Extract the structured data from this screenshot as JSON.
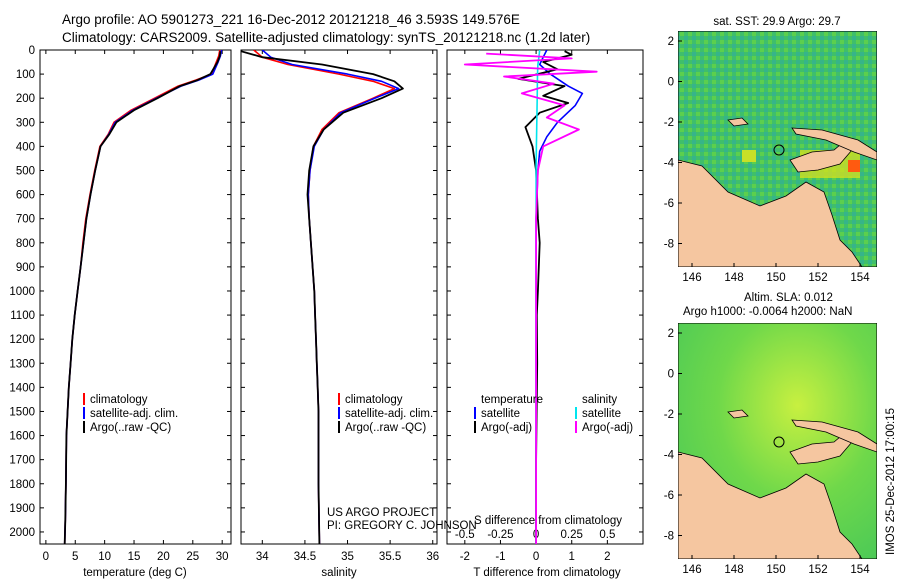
{
  "header": {
    "line1": "Argo profile: AO 5901273_221 16-Dec-2012 20121218_46 3.593S 149.576E",
    "line2": "Climatology: CARS2009. Satellite-adjusted climatology: synTS_20121218.nc (1.2d later)"
  },
  "colors": {
    "climatology": "#ff0000",
    "satellite": "#0000ff",
    "argo": "#000000",
    "salinity_satellite": "#00e5ee",
    "salinity_argo": "#ff00ff",
    "land": "#f5c6a0",
    "map_ocean": "#4fd04f"
  },
  "legend_profiles": [
    "climatology",
    "satellite-adj. clim.",
    "Argo(..raw -QC)"
  ],
  "legend_diff": {
    "heading_t": "temperature",
    "heading_s": "salinity",
    "items_t": [
      "satellite",
      "Argo(-adj)"
    ],
    "items_s": [
      "satellite",
      "Argo(-adj)"
    ]
  },
  "annotation": {
    "line1": "US ARGO PROJECT",
    "line2": "PI: GREGORY C. JOHNSON"
  },
  "sst_map": {
    "title": "sat. SST: 29.9  Argo: 29.7",
    "xticks": [
      "146",
      "148",
      "150",
      "152",
      "154"
    ],
    "yticks": [
      "2",
      "0",
      "-2",
      "-4",
      "-6",
      "-8"
    ]
  },
  "sla_map": {
    "title1": "Altim. SLA: 0.012",
    "title2": "Argo h1000: -0.0064  h2000: NaN",
    "xticks": [
      "146",
      "148",
      "150",
      "152",
      "154"
    ],
    "yticks": [
      "2",
      "0",
      "-2",
      "-4",
      "-6",
      "-8"
    ]
  },
  "footer_stamp": "IMOS 25-Dec-2012 17:00:15",
  "chart_data": [
    {
      "type": "line",
      "xlabel": "temperature (deg C)",
      "ylim": [
        2050,
        0
      ],
      "xlim": [
        -1,
        31.5
      ],
      "xticks": [
        0,
        5,
        10,
        15,
        20,
        25,
        30
      ],
      "yticks": [
        0,
        100,
        200,
        300,
        400,
        500,
        600,
        700,
        800,
        900,
        1000,
        1100,
        1200,
        1300,
        1400,
        1500,
        1600,
        1700,
        1800,
        1900,
        2000
      ],
      "series": [
        {
          "name": "climatology",
          "x": [
            29.6,
            29.4,
            29.0,
            28.2,
            25.5,
            22.5,
            18.5,
            14.5,
            11.6,
            10.6,
            9.2,
            8.3,
            7.5,
            6.8,
            6.3,
            5.9,
            5.4,
            4.9,
            4.5,
            4.2,
            3.9,
            3.7,
            3.5,
            3.4,
            3.3,
            3.2
          ],
          "y": [
            0,
            25,
            50,
            100,
            125,
            150,
            200,
            250,
            300,
            350,
            400,
            500,
            600,
            700,
            800,
            900,
            1000,
            1100,
            1200,
            1300,
            1400,
            1500,
            1600,
            1800,
            1950,
            2050
          ]
        },
        {
          "name": "satellite-adj. clim.",
          "x": [
            29.9,
            29.7,
            29.3,
            28.4,
            26.0,
            23.0,
            18.8,
            14.8,
            11.8,
            10.7,
            9.3,
            8.4,
            7.6,
            6.9,
            6.4,
            5.9,
            5.4,
            4.9,
            4.5,
            4.2,
            3.9,
            3.7,
            3.5,
            3.4,
            3.3,
            3.2
          ],
          "y": [
            0,
            25,
            50,
            100,
            125,
            150,
            200,
            250,
            300,
            350,
            400,
            500,
            600,
            700,
            800,
            900,
            1000,
            1100,
            1200,
            1300,
            1400,
            1500,
            1600,
            1800,
            1950,
            2050
          ]
        },
        {
          "name": "Argo(..raw -QC)",
          "x": [
            29.7,
            29.6,
            29.2,
            28.0,
            25.8,
            22.8,
            19.0,
            15.0,
            12.0,
            10.8,
            9.3,
            8.4,
            7.6,
            6.9,
            6.4,
            5.9,
            5.4,
            4.9,
            4.5,
            4.2,
            3.9,
            3.7,
            3.5,
            3.4,
            3.3,
            3.2
          ],
          "y": [
            5,
            25,
            50,
            100,
            125,
            150,
            200,
            250,
            300,
            350,
            400,
            500,
            600,
            700,
            800,
            900,
            1000,
            1100,
            1200,
            1300,
            1400,
            1500,
            1600,
            1800,
            1950,
            2050
          ]
        }
      ]
    },
    {
      "type": "line",
      "xlabel": "salinity",
      "ylim": [
        2050,
        0
      ],
      "xlim": [
        33.75,
        36.05
      ],
      "xticks": [
        34,
        34.5,
        35,
        35.5,
        36
      ],
      "series": [
        {
          "name": "climatology",
          "x": [
            33.9,
            34.0,
            34.3,
            34.9,
            35.3,
            35.55,
            35.3,
            34.9,
            34.7,
            34.6,
            34.56,
            34.54,
            34.55,
            34.57,
            34.59,
            34.61,
            34.62,
            34.63,
            34.64,
            34.65,
            34.66,
            34.66,
            34.67
          ],
          "y": [
            0,
            30,
            60,
            100,
            130,
            160,
            200,
            260,
            330,
            400,
            500,
            600,
            700,
            800,
            900,
            1000,
            1100,
            1200,
            1300,
            1400,
            1500,
            1800,
            2050
          ]
        },
        {
          "name": "satellite-adj. clim.",
          "x": [
            34.0,
            34.1,
            34.35,
            35.0,
            35.4,
            35.6,
            35.32,
            34.92,
            34.72,
            34.61,
            34.56,
            34.54,
            34.55,
            34.57,
            34.59,
            34.61,
            34.62,
            34.63,
            34.64,
            34.65,
            34.66,
            34.66,
            34.67
          ],
          "y": [
            0,
            30,
            60,
            100,
            130,
            160,
            200,
            260,
            330,
            400,
            500,
            600,
            700,
            800,
            900,
            1000,
            1100,
            1200,
            1300,
            1400,
            1500,
            1800,
            2050
          ]
        },
        {
          "name": "Argo(..raw -QC)",
          "x": [
            33.75,
            34.0,
            34.7,
            35.3,
            35.55,
            35.65,
            35.4,
            34.95,
            34.72,
            34.6,
            34.55,
            34.53,
            34.55,
            34.57,
            34.59,
            34.61,
            34.62,
            34.63,
            34.64,
            34.65,
            34.66,
            34.66,
            34.67
          ],
          "y": [
            5,
            30,
            60,
            100,
            130,
            160,
            200,
            260,
            330,
            400,
            500,
            600,
            700,
            800,
            900,
            1000,
            1100,
            1200,
            1300,
            1400,
            1500,
            1800,
            2050
          ]
        }
      ]
    },
    {
      "type": "line",
      "xlabel": "T difference from climatology",
      "xlabel_top": "S difference from climatology",
      "ylim": [
        2050,
        0
      ],
      "xlim": [
        -2.5,
        3.0
      ],
      "xticks": [
        -2,
        -1,
        0,
        1,
        2
      ],
      "xticks_top": [
        "-0.5",
        "-0.25",
        "0",
        "0.25",
        "0.5"
      ],
      "series": [
        {
          "name": "temperature satellite",
          "x": [
            0.3,
            0.2,
            0.1,
            0.4,
            0.9,
            1.3,
            1.1,
            0.6,
            0.3,
            0.1,
            0.05,
            0.0,
            0.0,
            0.0,
            0.0,
            0.0,
            0.0
          ],
          "y": [
            0,
            30,
            60,
            100,
            150,
            180,
            230,
            300,
            360,
            420,
            500,
            700,
            900,
            1200,
            1500,
            1800,
            2050
          ]
        },
        {
          "name": "temperature Argo(-adj)",
          "x": [
            0.8,
            1.0,
            0.2,
            0.6,
            -0.5,
            0.8,
            0.2,
            0.9,
            0.1,
            -0.3,
            -0.1,
            0.0,
            0.05,
            0.1,
            0.05,
            0.02,
            0.03,
            0.0,
            0.0
          ],
          "y": [
            5,
            20,
            50,
            80,
            120,
            150,
            190,
            220,
            260,
            320,
            400,
            500,
            700,
            800,
            1000,
            1100,
            1300,
            1700,
            2050
          ]
        },
        {
          "name": "salinity satellite",
          "x": [
            0.1,
            0.08,
            0.05,
            0.04,
            0.03,
            0.02,
            0.01,
            0.0,
            0.0,
            0.0,
            0.0
          ],
          "y": [
            0,
            30,
            60,
            100,
            200,
            300,
            400,
            500,
            800,
            1500,
            2050
          ]
        },
        {
          "name": "salinity Argo(-adj)",
          "x": [
            -1.4,
            1.0,
            -2.0,
            1.7,
            -0.9,
            0.5,
            -0.4,
            0.8,
            0.3,
            1.2,
            0.2,
            0.05,
            0.0,
            0.0
          ],
          "y": [
            15,
            35,
            60,
            90,
            110,
            140,
            180,
            230,
            280,
            330,
            400,
            500,
            700,
            2050
          ]
        }
      ]
    }
  ]
}
